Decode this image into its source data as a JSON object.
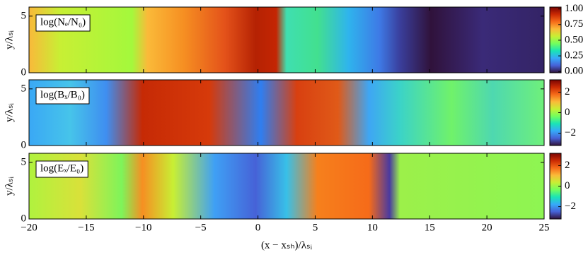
{
  "chart_data": [
    {
      "type": "heatmap",
      "label": "log(Nₑ/N₀)",
      "ylabel": "y/λₛᵢ",
      "colormap": "turbo",
      "xlim": [
        -20,
        25
      ],
      "xticks": [
        {
          "value": -20,
          "label": "−20"
        },
        {
          "value": -15,
          "label": "−15"
        },
        {
          "value": -10,
          "label": "−10"
        },
        {
          "value": -5,
          "label": "−5"
        },
        0,
        5,
        10,
        15,
        20,
        25
      ],
      "ylim": [
        0,
        5.8
      ],
      "yticks": [
        0,
        5
      ],
      "clim": [
        -0.02,
        1.03
      ],
      "cticks": [
        {
          "value": 0,
          "label": "0.00"
        },
        {
          "value": 0.25,
          "label": "0.25"
        },
        {
          "value": 0.5,
          "label": "0.50"
        },
        {
          "value": 0.75,
          "label": "0.75"
        },
        {
          "value": 1,
          "label": "1.00"
        }
      ]
    },
    {
      "type": "heatmap",
      "label": "log(Bₓ/B₀)",
      "ylabel": "y/λₛᵢ",
      "colormap": "turbo",
      "xlim": [
        -20,
        25
      ],
      "xticks": [
        {
          "value": -20,
          "label": "−20"
        },
        {
          "value": -15,
          "label": "−15"
        },
        {
          "value": -10,
          "label": "−10"
        },
        {
          "value": -5,
          "label": "−5"
        },
        0,
        5,
        10,
        15,
        20,
        25
      ],
      "ylim": [
        0,
        5.8
      ],
      "yticks": [
        0,
        5
      ],
      "clim": [
        -3.2,
        3.2
      ],
      "cticks": [
        {
          "value": -2,
          "label": "−2"
        },
        0,
        2
      ]
    },
    {
      "type": "heatmap",
      "label": "log(Eₓ/E₀)",
      "ylabel": "y/λₛᵢ",
      "xlabel": "(x − xₛₕ)/λₛᵢ",
      "colormap": "turbo",
      "xlim": [
        -20,
        25
      ],
      "xticks": [
        {
          "value": -20,
          "label": "−20"
        },
        {
          "value": -15,
          "label": "−15"
        },
        {
          "value": -10,
          "label": "−10"
        },
        {
          "value": -5,
          "label": "−5"
        },
        0,
        5,
        10,
        15,
        20,
        25
      ],
      "ylim": [
        0,
        5.8
      ],
      "yticks": [
        0,
        5
      ],
      "clim": [
        -3.2,
        3.2
      ],
      "cticks": [
        {
          "value": -2,
          "label": "−2"
        },
        0,
        2
      ]
    }
  ]
}
